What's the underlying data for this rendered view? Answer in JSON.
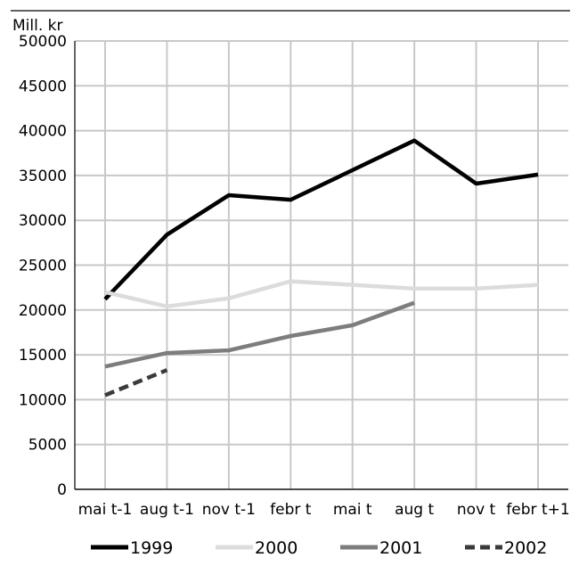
{
  "chart_data": {
    "type": "line",
    "ylabel": "Mill. kr",
    "xlabel": "",
    "ylim": [
      0,
      50000
    ],
    "yticks": [
      0,
      5000,
      10000,
      15000,
      20000,
      25000,
      30000,
      35000,
      40000,
      45000,
      50000
    ],
    "categories": [
      "mai t-1",
      "aug t-1",
      "nov t-1",
      "febr t",
      "mai t",
      "aug t",
      "nov t",
      "febr t+1"
    ],
    "grid": true,
    "legend_position": "bottom",
    "series": [
      {
        "name": "1999",
        "color": "#000000",
        "dash": "solid",
        "values": [
          21200,
          28400,
          32800,
          32300,
          35600,
          38900,
          34100,
          35100
        ]
      },
      {
        "name": "2000",
        "color": "#dcdcdc",
        "dash": "solid",
        "values": [
          22000,
          20400,
          21300,
          23200,
          22800,
          22400,
          22400,
          22800
        ]
      },
      {
        "name": "2001",
        "color": "#7d7d7d",
        "dash": "solid",
        "values": [
          13700,
          15200,
          15500,
          17100,
          18300,
          20800,
          null,
          null
        ]
      },
      {
        "name": "2002",
        "color": "#3a3a3a",
        "dash": "dashed",
        "values": [
          10500,
          13300,
          null,
          null,
          null,
          null,
          null,
          null
        ]
      }
    ]
  }
}
